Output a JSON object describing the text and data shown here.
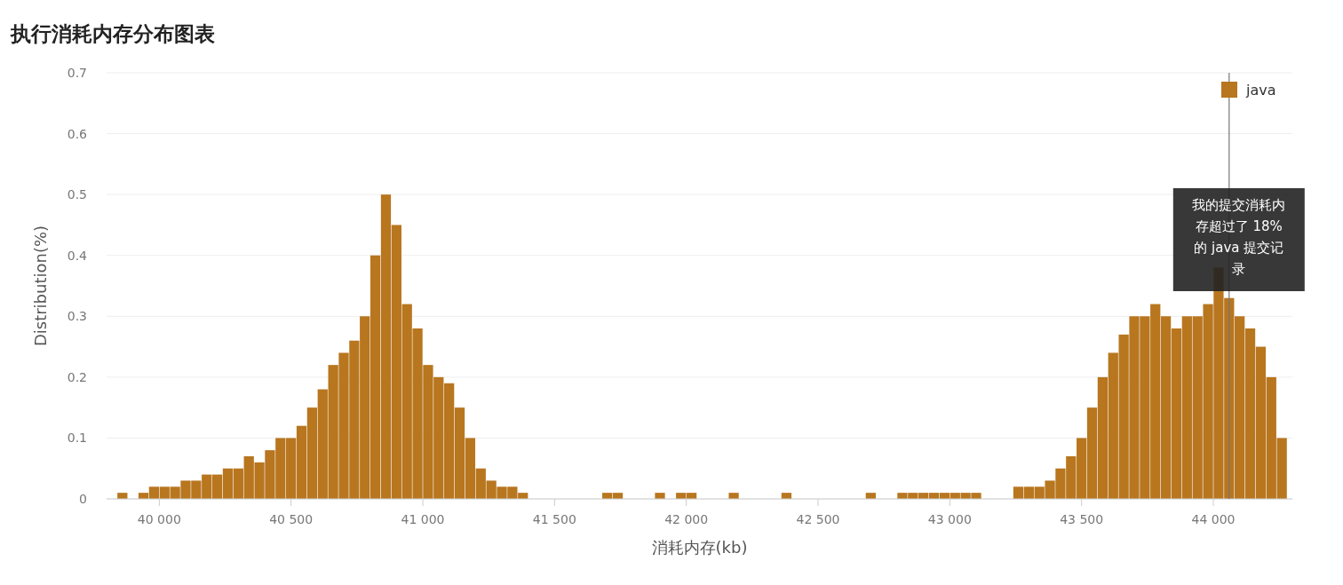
{
  "chart_data": {
    "type": "histogram",
    "title": "执行消耗内存分布图表",
    "xlabel": "消耗内存(kb)",
    "ylabel": "Distribution(%)",
    "bins": [
      39840,
      39880,
      39920,
      39960,
      40000,
      40040,
      40080,
      40120,
      40160,
      40200,
      40240,
      40280,
      40320,
      40360,
      40400,
      40440,
      40480,
      40520,
      40560,
      40600,
      40640,
      40680,
      40720,
      40760,
      40800,
      40840,
      40880,
      40920,
      40960,
      41000,
      41040,
      41080,
      41120,
      41160,
      41200,
      41240,
      41280,
      41320,
      41360,
      41400,
      41440,
      41480,
      41520,
      41560,
      41600,
      41640,
      41680,
      41720,
      41760,
      41800,
      41840,
      41880,
      41920,
      41960,
      42000,
      42040,
      42080,
      42120,
      42160,
      42200,
      42240,
      42280,
      42320,
      42360,
      42400,
      42440,
      42480,
      42520,
      42560,
      42600,
      42640,
      42680,
      42720,
      42760,
      42800,
      42840,
      42880,
      42920,
      42960,
      43000,
      43040,
      43080,
      43120,
      43160,
      43200,
      43240,
      43280,
      43320,
      43360,
      43400,
      43440,
      43480,
      43520,
      43560,
      43600,
      43640,
      43680,
      43720,
      43760,
      43800,
      43840,
      43880,
      43920,
      43960,
      44000,
      44040,
      44080,
      44120,
      44160,
      44200,
      44240,
      44280
    ],
    "series": [
      {
        "name": "java",
        "color": "#b8761f",
        "values": [
          0.01,
          0,
          0.01,
          0.02,
          0.02,
          0.02,
          0.03,
          0.03,
          0.04,
          0.04,
          0.05,
          0.05,
          0.07,
          0.06,
          0.08,
          0.1,
          0.1,
          0.12,
          0.15,
          0.18,
          0.22,
          0.24,
          0.26,
          0.3,
          0.4,
          0.5,
          0.45,
          0.32,
          0.28,
          0.22,
          0.2,
          0.19,
          0.15,
          0.1,
          0.05,
          0.03,
          0.02,
          0.02,
          0.01,
          0,
          0,
          0,
          0,
          0,
          0,
          0,
          0.01,
          0.01,
          0,
          0,
          0,
          0.01,
          0,
          0.01,
          0.01,
          0,
          0,
          0,
          0.01,
          0,
          0,
          0,
          0,
          0.01,
          0,
          0,
          0,
          0,
          0,
          0,
          0,
          0.01,
          0,
          0,
          0.01,
          0.01,
          0.01,
          0.01,
          0.01,
          0.01,
          0.01,
          0.01,
          0,
          0,
          0,
          0.02,
          0.02,
          0.02,
          0.03,
          0.05,
          0.07,
          0.1,
          0.15,
          0.2,
          0.24,
          0.27,
          0.3,
          0.3,
          0.32,
          0.3,
          0.28,
          0.3,
          0.3,
          0.32,
          0.38,
          0.33,
          0.3,
          0.28,
          0.25,
          0.2,
          0.1
        ]
      }
    ],
    "xlim": [
      39800,
      44300
    ],
    "ylim": [
      0,
      0.7
    ],
    "xticks": [
      {
        "value": 40000,
        "label": "40 000"
      },
      {
        "value": 40500,
        "label": "40 500"
      },
      {
        "value": 41000,
        "label": "41 000"
      },
      {
        "value": 41500,
        "label": "41 500"
      },
      {
        "value": 42000,
        "label": "42 000"
      },
      {
        "value": 42500,
        "label": "42 500"
      },
      {
        "value": 43000,
        "label": "43 000"
      },
      {
        "value": 43500,
        "label": "43 500"
      },
      {
        "value": 44000,
        "label": "44 000"
      }
    ],
    "yticks": [
      0,
      0.1,
      0.2,
      0.3,
      0.4,
      0.5,
      0.6,
      0.7
    ],
    "grid": "y",
    "legend": "top right",
    "ref_lines": [
      {
        "axis": "x",
        "value": 44060,
        "color": "#777777"
      }
    ],
    "annotations": [
      "我的提交消耗内存超过了 18% 的 java 提交记录"
    ]
  }
}
